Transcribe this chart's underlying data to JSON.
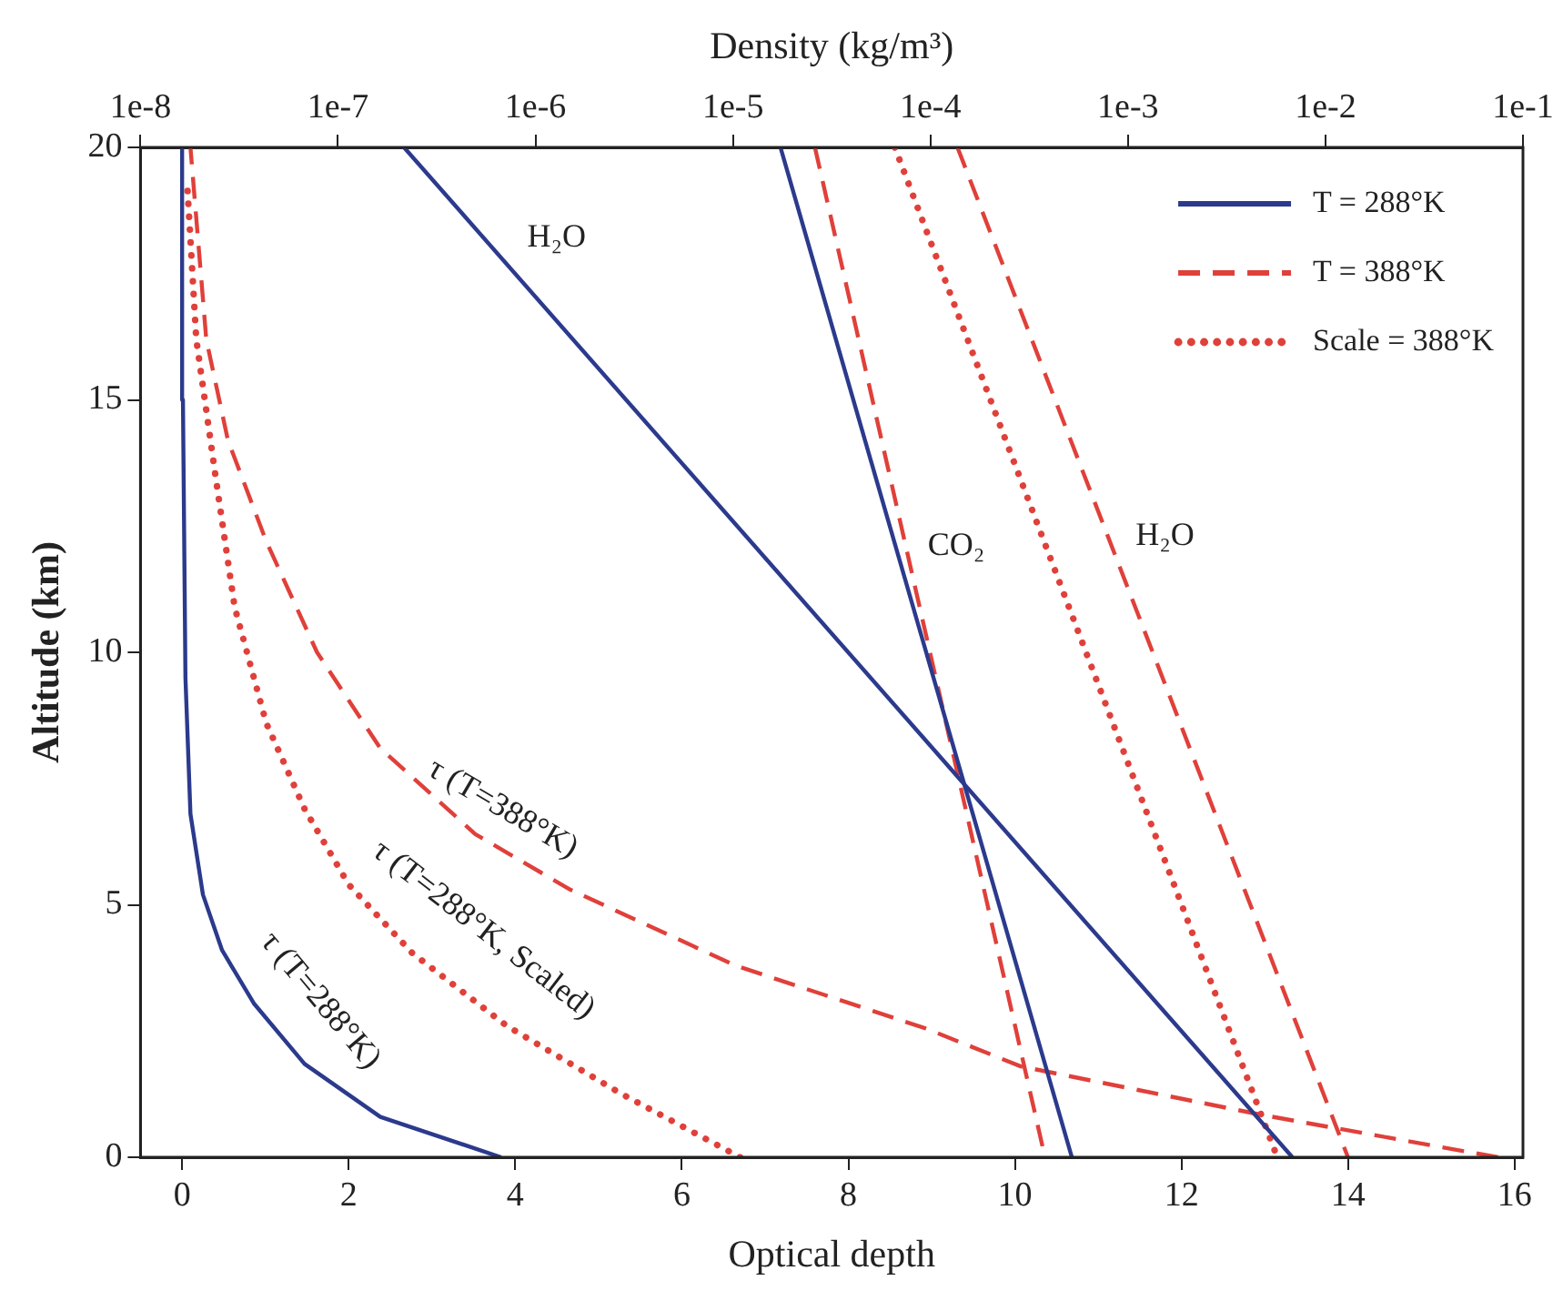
{
  "chart_data": {
    "type": "line",
    "xlabel": "Optical depth",
    "x2label": "Density (kg/m³)",
    "ylabel": "Altitude (km)",
    "xlim": [
      -0.5,
      16.1
    ],
    "xticks": [
      0,
      2,
      4,
      6,
      8,
      10,
      12,
      14,
      16
    ],
    "x2lim": [
      1e-08,
      0.1
    ],
    "x2ticks": [
      {
        "value": 1e-08,
        "label": "1e-8"
      },
      {
        "value": 1e-07,
        "label": "1e-7"
      },
      {
        "value": 1e-06,
        "label": "1e-6"
      },
      {
        "value": 1e-05,
        "label": "1e-5"
      },
      {
        "value": 0.0001,
        "label": "1e-4"
      },
      {
        "value": 0.001,
        "label": "1e-3"
      },
      {
        "value": 0.01,
        "label": "1e-2"
      },
      {
        "value": 0.1,
        "label": "1e-1"
      }
    ],
    "ylim": [
      0,
      20
    ],
    "yticks": [
      0,
      5,
      10,
      15,
      20
    ],
    "log": "x2",
    "grid": false,
    "legend": "top right",
    "marker": "none",
    "series": [
      {
        "name": "T = 288°K",
        "color": "#2b3a8c",
        "line_style": "solid",
        "axis": "x2",
        "x": [
          2.16e-07,
          0.0068
        ],
        "values": [
          20,
          0
        ]
      },
      {
        "color": "#2b3a8c",
        "line_style": "solid",
        "axis": "x2",
        "x": [
          1.74e-05,
          0.00052
        ],
        "values": [
          20,
          0
        ]
      },
      {
        "name": "T = 388°K",
        "color": "#e0403a",
        "line_style": "dashed",
        "axis": "x2",
        "x": [
          0.000137,
          0.013
        ],
        "values": [
          20,
          0
        ]
      },
      {
        "color": "#e0403a",
        "line_style": "dashed",
        "axis": "x2",
        "x": [
          2.6e-05,
          0.00038
        ],
        "values": [
          20,
          0
        ]
      },
      {
        "name": "Scale = 388°K",
        "color": "#e0403a",
        "line_style": "dotted",
        "axis": "x2",
        "x": [
          6.6e-05,
          0.0057
        ],
        "values": [
          20,
          0
        ]
      },
      {
        "color": "#2b3a8c",
        "line_style": "solid",
        "x": [
          3.83,
          2.38,
          1.47,
          0.86,
          0.48,
          0.25,
          0.1,
          0.04,
          0.01,
          0
        ],
        "values": [
          0,
          0.8,
          1.85,
          3.05,
          4.1,
          5.2,
          6.8,
          9.5,
          15,
          20
        ]
      },
      {
        "color": "#e0403a",
        "line_style": "dashed",
        "x": [
          15.8,
          12.96,
          10.07,
          8.93,
          6.64,
          4.66,
          3.52,
          2.38,
          1.62,
          1.01,
          0.55,
          0.29,
          0.1
        ],
        "values": [
          0,
          0.84,
          1.8,
          2.55,
          3.8,
          5.3,
          6.4,
          8.1,
          10,
          12.2,
          14.2,
          16.2,
          20
        ]
      },
      {
        "color": "#e0403a",
        "line_style": "dotted",
        "x": [
          6.7,
          5.27,
          3.9,
          2.76,
          2.0,
          1.47,
          1.01,
          0.63,
          0.4,
          0.17,
          0.06
        ],
        "values": [
          0,
          1.26,
          2.6,
          4.05,
          5.4,
          6.9,
          8.6,
          10.9,
          13.5,
          16.2,
          19.3
        ]
      }
    ],
    "annotations": [
      "H₂O",
      "CO₂",
      "H₂O",
      "τ (T=388°K)",
      "τ (T=288°K, Scaled)",
      "τ (T=288°K)"
    ]
  }
}
